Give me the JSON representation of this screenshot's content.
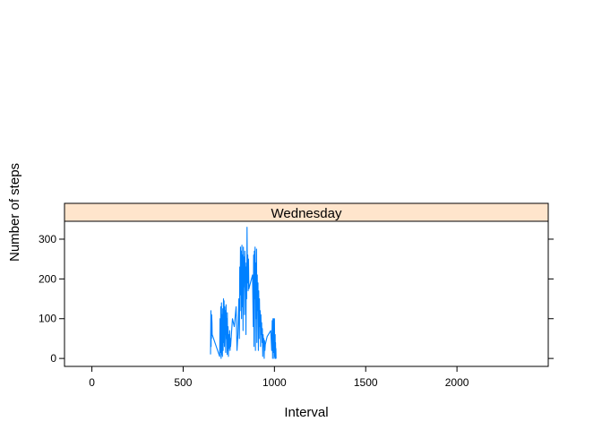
{
  "chart_data": {
    "type": "line",
    "panel_title": "Wednesday",
    "xlabel": "Interval",
    "ylabel": "Number of steps",
    "xlim": [
      -150,
      2500
    ],
    "ylim": [
      -20,
      345
    ],
    "x_ticks": [
      0,
      500,
      1000,
      1500,
      2000
    ],
    "y_ticks": [
      0,
      100,
      200,
      300
    ],
    "grid": false,
    "series": [
      {
        "color": "#0080ff",
        "x": [
          650,
          652,
          653,
          654,
          655,
          656,
          658,
          659,
          700,
          702,
          704,
          706,
          708,
          710,
          711,
          713,
          715,
          717,
          719,
          721,
          722,
          724,
          726,
          728,
          730,
          731,
          733,
          735,
          737,
          739,
          741,
          742,
          744,
          746,
          748,
          750,
          751,
          753,
          755,
          757,
          759,
          760,
          770,
          780,
          790,
          795,
          800,
          805,
          808,
          810,
          812,
          814,
          816,
          818,
          820,
          822,
          824,
          826,
          828,
          830,
          832,
          834,
          836,
          838,
          840,
          842,
          844,
          846,
          848,
          850,
          852,
          854,
          856,
          858,
          860,
          880,
          884,
          886,
          888,
          890,
          892,
          894,
          896,
          898,
          900,
          902,
          904,
          906,
          908,
          910,
          912,
          914,
          916,
          918,
          920,
          922,
          924,
          926,
          928,
          930,
          932,
          934,
          936,
          938,
          940,
          942,
          944,
          946,
          948,
          950,
          960,
          980,
          985,
          988,
          990,
          992,
          994,
          996,
          998,
          1000,
          1002,
          1004,
          1005,
          1006,
          1007,
          1008,
          1009,
          1010
        ],
        "y": [
          10,
          120,
          30,
          100,
          50,
          110,
          90,
          60,
          5,
          100,
          15,
          130,
          0,
          140,
          10,
          110,
          5,
          125,
          20,
          150,
          40,
          145,
          30,
          130,
          60,
          120,
          15,
          135,
          50,
          100,
          10,
          115,
          20,
          80,
          5,
          60,
          25,
          40,
          70,
          20,
          50,
          30,
          100,
          80,
          130,
          20,
          60,
          150,
          50,
          230,
          120,
          280,
          160,
          270,
          100,
          285,
          130,
          260,
          70,
          280,
          180,
          255,
          110,
          270,
          200,
          230,
          60,
          240,
          150,
          330,
          190,
          260,
          170,
          250,
          175,
          210,
          80,
          260,
          30,
          270,
          150,
          280,
          20,
          240,
          100,
          275,
          40,
          210,
          120,
          190,
          20,
          170,
          50,
          150,
          80,
          120,
          30,
          110,
          60,
          90,
          40,
          75,
          5,
          60,
          30,
          50,
          0,
          45,
          20,
          35,
          55,
          70,
          20,
          95,
          0,
          100,
          15,
          100,
          0,
          100,
          5,
          60,
          0,
          40,
          10,
          25,
          0,
          0
        ]
      }
    ]
  }
}
